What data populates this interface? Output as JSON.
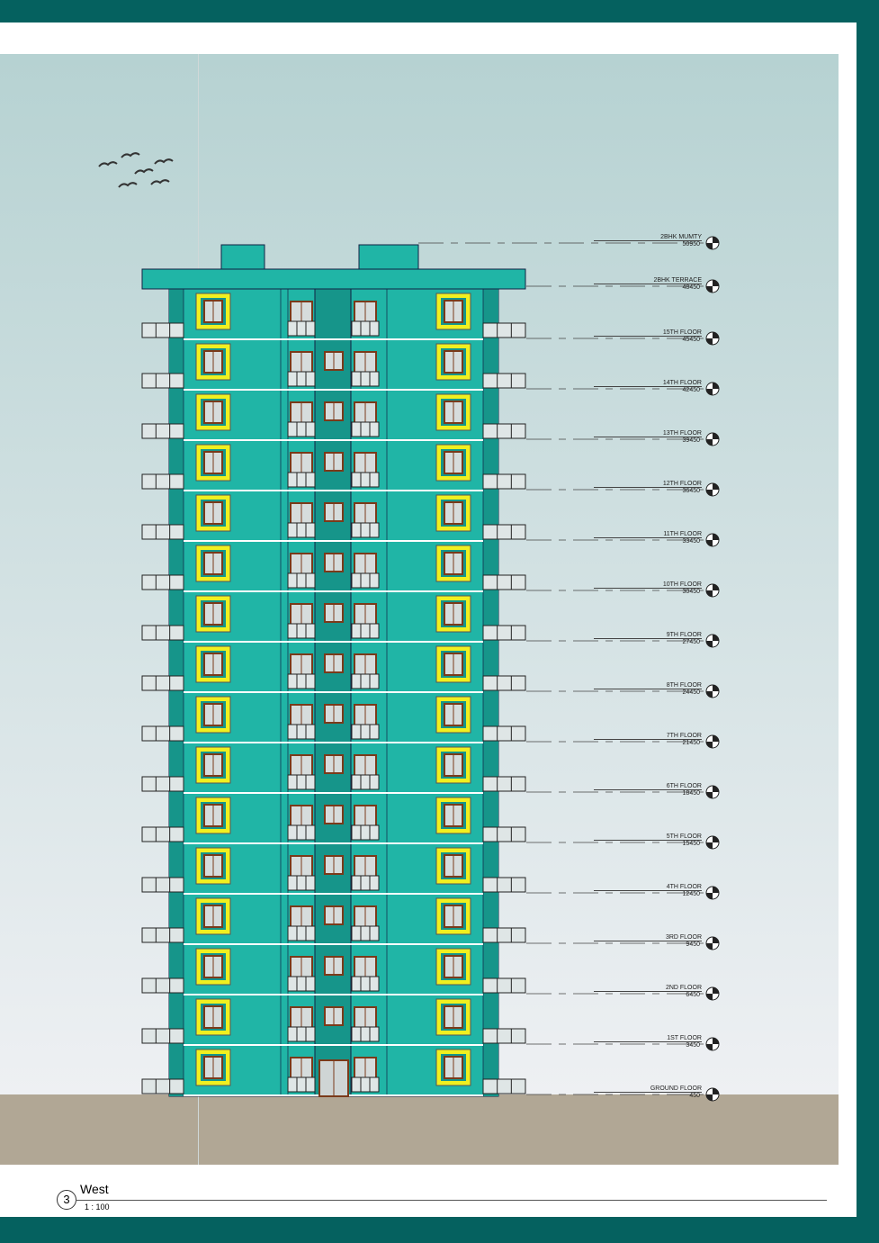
{
  "view": {
    "number": "3",
    "title": "West",
    "scale": "1 : 100"
  },
  "colors": {
    "frame": "#05615f",
    "facade": "#20b5a6",
    "shaft": "#16958a",
    "window_surround": "#f0f020",
    "ground": "#b1a795"
  },
  "levels": [
    {
      "name": "2BHK MUMTY",
      "elevation": "50950"
    },
    {
      "name": "2BHK TERRACE",
      "elevation": "48450"
    },
    {
      "name": "15TH FLOOR",
      "elevation": "45450"
    },
    {
      "name": "14TH FLOOR",
      "elevation": "42450"
    },
    {
      "name": "13TH FLOOR",
      "elevation": "39450"
    },
    {
      "name": "12TH FLOOR",
      "elevation": "36450"
    },
    {
      "name": "11TH FLOOR",
      "elevation": "33450"
    },
    {
      "name": "10TH FLOOR",
      "elevation": "30450"
    },
    {
      "name": "9TH FLOOR",
      "elevation": "27450"
    },
    {
      "name": "8TH FLOOR",
      "elevation": "24450"
    },
    {
      "name": "7TH FLOOR",
      "elevation": "21450"
    },
    {
      "name": "6TH FLOOR",
      "elevation": "18450"
    },
    {
      "name": "5TH FLOOR",
      "elevation": "15450"
    },
    {
      "name": "4TH FLOOR",
      "elevation": "12450"
    },
    {
      "name": "3RD FLOOR",
      "elevation": "9450"
    },
    {
      "name": "2ND FLOOR",
      "elevation": "6450"
    },
    {
      "name": "1ST FLOOR",
      "elevation": "3450"
    },
    {
      "name": "GROUND FLOOR",
      "elevation": "450"
    }
  ]
}
